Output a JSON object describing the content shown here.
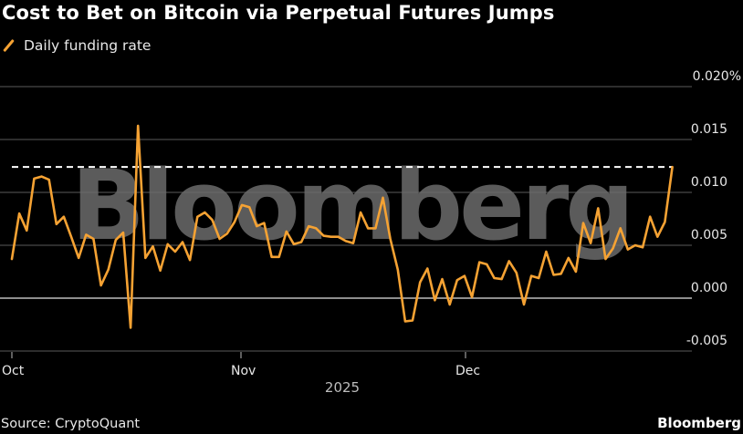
{
  "header": {
    "title": "Cost to Bet on Bitcoin via Perpetual Futures Jumps",
    "legend_label": "Daily funding rate",
    "legend_icon": "orange-slash-line-icon"
  },
  "footer": {
    "source": "Source: CryptoQuant",
    "brand": "Bloomberg"
  },
  "watermark": "Bloomberg",
  "colors": {
    "background": "#000000",
    "series": "#f5a233",
    "gridline": "#5a5a5a",
    "zero_line": "#bdbdbd",
    "reference_line": "#ffffff",
    "watermark": "#6b6b6b"
  },
  "axes": {
    "y_ticks": [
      "0.020%",
      "0.015",
      "0.010",
      "0.005",
      "0.000",
      "-0.005"
    ],
    "x_ticks": [
      "Oct",
      "Nov",
      "Dec"
    ],
    "x_group_label": "2025"
  },
  "chart_data": {
    "type": "line",
    "title": "Cost to Bet on Bitcoin via Perpetual Futures Jumps",
    "xlabel": "2025",
    "ylabel": "Daily funding rate (%)",
    "ylim": [
      -0.005,
      0.02
    ],
    "y_ticks": [
      -0.005,
      0.0,
      0.005,
      0.01,
      0.015,
      0.02
    ],
    "y_unit": "%",
    "x_ticks": [
      "Oct",
      "Nov",
      "Dec"
    ],
    "grid": true,
    "legend": {
      "entries": [
        "Daily funding rate"
      ],
      "position": "top-left"
    },
    "annotations": [
      {
        "type": "dashed-horizontal-line",
        "y": 0.0124,
        "description": "Reference at latest value"
      }
    ],
    "series": [
      {
        "name": "Daily funding rate",
        "color": "#f5a233",
        "x": [
          "2025-10-01",
          "2025-10-02",
          "2025-10-03",
          "2025-10-04",
          "2025-10-05",
          "2025-10-06",
          "2025-10-07",
          "2025-10-08",
          "2025-10-09",
          "2025-10-10",
          "2025-10-11",
          "2025-10-12",
          "2025-10-13",
          "2025-10-14",
          "2025-10-15",
          "2025-10-16",
          "2025-10-17",
          "2025-10-18",
          "2025-10-19",
          "2025-10-20",
          "2025-10-21",
          "2025-10-22",
          "2025-10-23",
          "2025-10-24",
          "2025-10-25",
          "2025-10-26",
          "2025-10-27",
          "2025-10-28",
          "2025-10-29",
          "2025-10-30",
          "2025-10-31",
          "2025-11-01",
          "2025-11-02",
          "2025-11-03",
          "2025-11-04",
          "2025-11-05",
          "2025-11-06",
          "2025-11-07",
          "2025-11-08",
          "2025-11-09",
          "2025-11-10",
          "2025-11-11",
          "2025-11-12",
          "2025-11-13",
          "2025-11-14",
          "2025-11-15",
          "2025-11-16",
          "2025-11-17",
          "2025-11-18",
          "2025-11-19",
          "2025-11-20",
          "2025-11-21",
          "2025-11-22",
          "2025-11-23",
          "2025-11-24",
          "2025-11-25",
          "2025-11-26",
          "2025-11-27",
          "2025-11-28",
          "2025-11-29",
          "2025-11-30",
          "2025-12-01",
          "2025-12-02",
          "2025-12-03",
          "2025-12-04",
          "2025-12-05",
          "2025-12-06",
          "2025-12-07",
          "2025-12-08",
          "2025-12-09",
          "2025-12-10",
          "2025-12-11",
          "2025-12-12",
          "2025-12-13",
          "2025-12-14",
          "2025-12-15",
          "2025-12-16",
          "2025-12-17",
          "2025-12-18",
          "2025-12-19",
          "2025-12-20",
          "2025-12-21",
          "2025-12-22",
          "2025-12-23",
          "2025-12-24",
          "2025-12-25",
          "2025-12-26",
          "2025-12-27",
          "2025-12-28",
          "2025-12-29"
        ],
        "values": [
          0.0037,
          0.008,
          0.0064,
          0.0113,
          0.0115,
          0.0112,
          0.007,
          0.0077,
          0.0058,
          0.0038,
          0.006,
          0.0056,
          0.0012,
          0.0027,
          0.0055,
          0.0062,
          -0.0028,
          0.0163,
          0.0038,
          0.0049,
          0.0026,
          0.0051,
          0.0044,
          0.0053,
          0.0036,
          0.0077,
          0.0081,
          0.0074,
          0.0056,
          0.0061,
          0.0072,
          0.0088,
          0.0086,
          0.0068,
          0.0071,
          0.0039,
          0.0039,
          0.0063,
          0.0051,
          0.0053,
          0.0068,
          0.0066,
          0.0059,
          0.0058,
          0.0058,
          0.0054,
          0.0052,
          0.0081,
          0.0066,
          0.0066,
          0.0095,
          0.0056,
          0.0027,
          -0.0022,
          -0.0021,
          0.0015,
          0.0028,
          -0.0002,
          0.0018,
          -0.0006,
          0.0017,
          0.0021,
          0.0001,
          0.0034,
          0.0032,
          0.0019,
          0.0018,
          0.0035,
          0.0024,
          -0.0006,
          0.0021,
          0.0019,
          0.0044,
          0.0022,
          0.0023,
          0.0038,
          0.0025,
          0.0071,
          0.0052,
          0.0085,
          0.0037,
          0.0047,
          0.0066,
          0.0046,
          0.005,
          0.0048,
          0.0077,
          0.0058,
          0.0072,
          0.0124
        ]
      }
    ]
  }
}
